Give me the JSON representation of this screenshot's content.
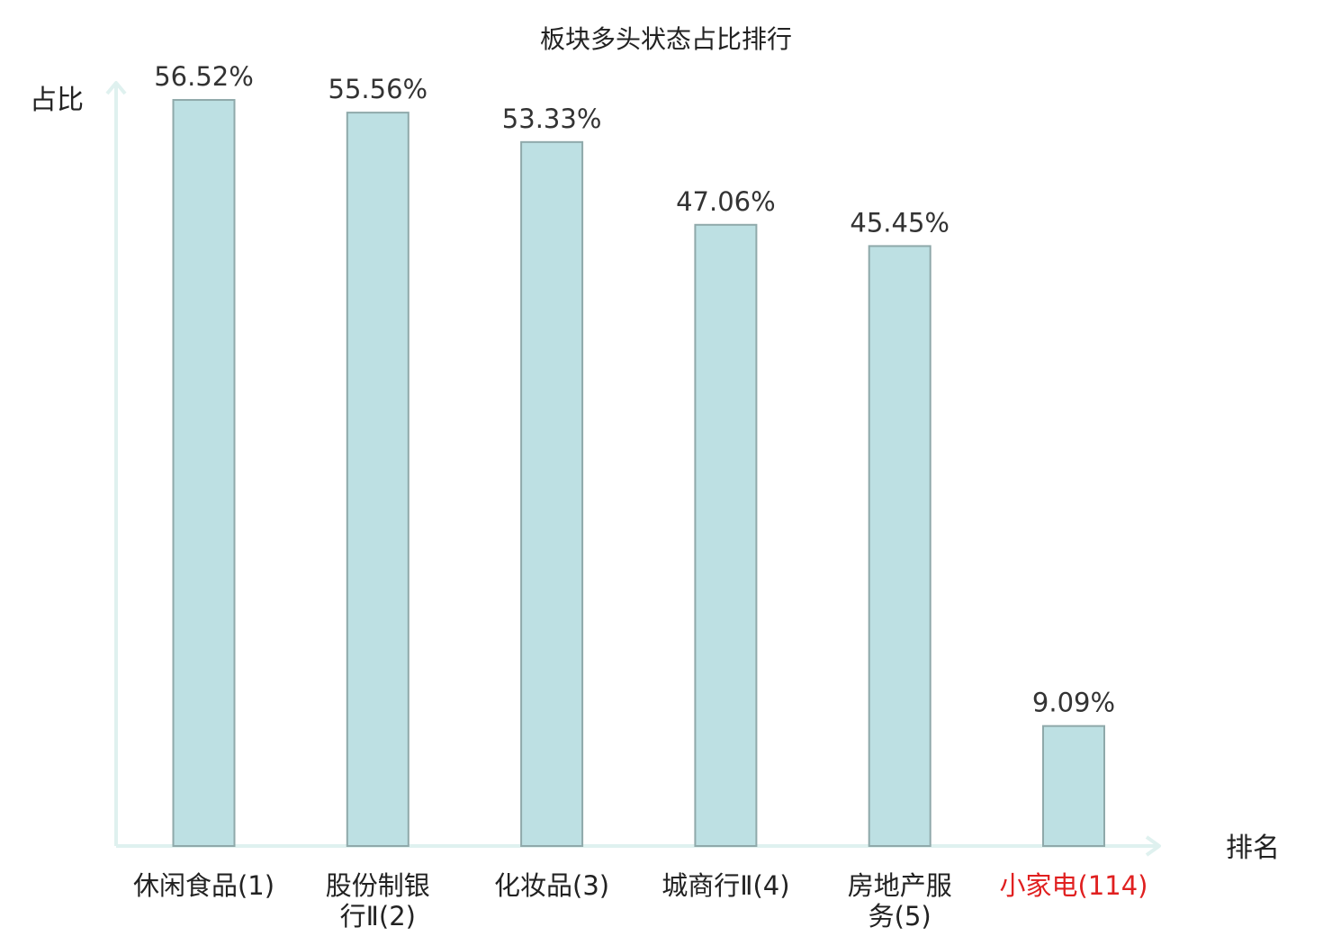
{
  "chart_data": {
    "type": "bar",
    "title": "板块多头状态占比排行",
    "xlabel": "排名",
    "ylabel": "占比",
    "ylim": [
      0,
      60
    ],
    "grid": false,
    "categories": [
      [
        "休闲食品(1)"
      ],
      [
        "股份制银",
        "行Ⅱ(2)"
      ],
      [
        "化妆品(3)"
      ],
      [
        "城商行Ⅱ(4)"
      ],
      [
        "房地产服",
        "务(5)"
      ],
      [
        "小家电(114)"
      ]
    ],
    "values": [
      56.52,
      55.56,
      53.33,
      47.06,
      45.45,
      9.09
    ],
    "value_labels": [
      "56.52%",
      "55.56%",
      "53.33%",
      "47.06%",
      "45.45%",
      "9.09%"
    ],
    "highlight_index": 5,
    "colors": {
      "bar_fill": "#bde0e3",
      "bar_stroke": "#8fa9aa",
      "axis": "#dff1ef",
      "text": "#222222",
      "value_text": "#333333",
      "highlight_text": "#e02020"
    }
  }
}
